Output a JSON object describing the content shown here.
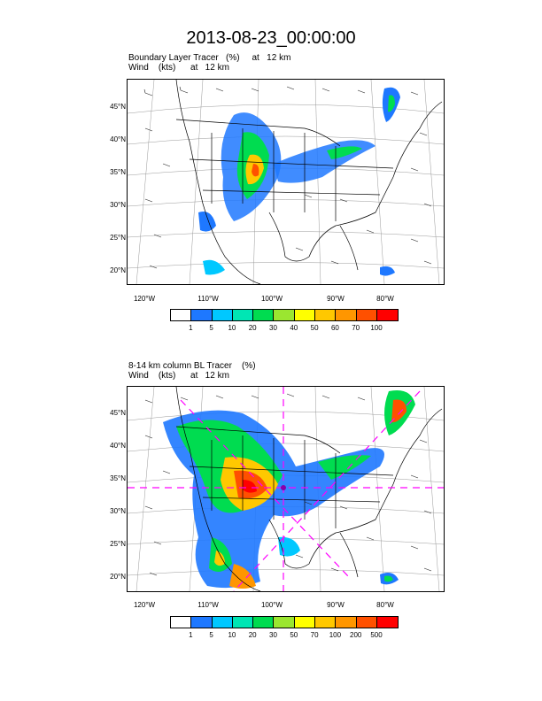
{
  "title": "2013-08-23_00:00:00",
  "panels": [
    {
      "label_line1": "Boundary Layer Tracer   (%)     at   12 km",
      "label_line2": "Wind    (kts)      at   12 km",
      "lat_labels": [
        "45°N",
        "40°N",
        "35°N",
        "30°N",
        "25°N",
        "20°N"
      ],
      "lon_labels": [
        "120°W",
        "110°W",
        "100°W",
        "90°W",
        "80°W"
      ],
      "colorbar": {
        "colors": [
          "#ffffff",
          "#1e78ff",
          "#00c8ff",
          "#00e6b4",
          "#00dc50",
          "#9be630",
          "#ffff00",
          "#ffc800",
          "#ff9600",
          "#ff5000",
          "#ff0000"
        ],
        "ticks": [
          "1",
          "5",
          "10",
          "20",
          "30",
          "40",
          "50",
          "60",
          "70",
          "100"
        ]
      }
    },
    {
      "label_line1": "8-14 km column BL Tracer    (%)",
      "label_line2": "Wind    (kts)      at   12 km",
      "lat_labels": [
        "45°N",
        "40°N",
        "35°N",
        "30°N",
        "25°N",
        "20°N"
      ],
      "lon_labels": [
        "120°W",
        "110°W",
        "100°W",
        "90°W",
        "80°W"
      ],
      "colorbar": {
        "colors": [
          "#ffffff",
          "#1e78ff",
          "#00c8ff",
          "#00e6b4",
          "#00dc50",
          "#9be630",
          "#ffff00",
          "#ffc800",
          "#ff9600",
          "#ff5000",
          "#ff0000"
        ],
        "ticks": [
          "1",
          "5",
          "10",
          "20",
          "30",
          "50",
          "70",
          "100",
          "200",
          "500"
        ]
      }
    }
  ]
}
